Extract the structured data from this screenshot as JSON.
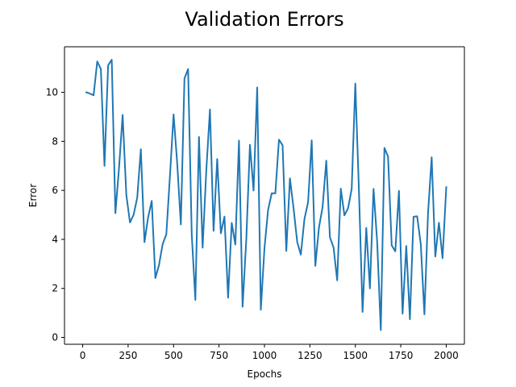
{
  "chart_data": {
    "type": "line",
    "title": "Validation Errors",
    "xlabel": "Epochs",
    "ylabel": "Error",
    "xlim": [
      -100,
      2100
    ],
    "ylim": [
      -0.28,
      11.86
    ],
    "xticks": [
      0,
      250,
      500,
      750,
      1000,
      1250,
      1500,
      1750,
      2000
    ],
    "xtick_labels": [
      "0",
      "250",
      "500",
      "750",
      "1000",
      "1250",
      "1500",
      "1750",
      "2000"
    ],
    "yticks": [
      0,
      2,
      4,
      6,
      8,
      10
    ],
    "ytick_labels": [
      "0",
      "2",
      "4",
      "6",
      "8",
      "10"
    ],
    "grid": false,
    "series": [
      {
        "color": "#1f77b4",
        "x": [
          20,
          40,
          60,
          80,
          100,
          120,
          140,
          160,
          180,
          200,
          220,
          240,
          260,
          280,
          300,
          320,
          340,
          360,
          380,
          400,
          420,
          440,
          460,
          480,
          500,
          520,
          540,
          560,
          580,
          600,
          620,
          640,
          660,
          680,
          700,
          720,
          740,
          760,
          780,
          800,
          820,
          840,
          860,
          880,
          900,
          920,
          940,
          960,
          980,
          1000,
          1020,
          1040,
          1060,
          1080,
          1100,
          1120,
          1140,
          1160,
          1180,
          1200,
          1220,
          1240,
          1260,
          1280,
          1300,
          1320,
          1340,
          1360,
          1380,
          1400,
          1420,
          1440,
          1460,
          1480,
          1500,
          1520,
          1540,
          1560,
          1580,
          1600,
          1620,
          1640,
          1660,
          1680,
          1700,
          1720,
          1740,
          1760,
          1780,
          1800,
          1820,
          1840,
          1860,
          1880,
          1900,
          1920,
          1940,
          1960,
          1980,
          2000
        ],
        "y": [
          10.0,
          9.95,
          9.88,
          11.26,
          10.95,
          7.0,
          11.1,
          11.33,
          5.07,
          6.9,
          9.08,
          5.81,
          4.69,
          5.0,
          5.7,
          7.68,
          3.89,
          4.9,
          5.57,
          2.42,
          2.95,
          3.8,
          4.21,
          6.6,
          9.1,
          7.1,
          4.61,
          10.57,
          10.95,
          4.21,
          1.53,
          8.18,
          3.66,
          6.83,
          9.3,
          4.35,
          7.28,
          4.25,
          4.93,
          1.62,
          4.67,
          3.79,
          8.03,
          1.25,
          4.02,
          7.86,
          5.99,
          10.2,
          1.13,
          3.63,
          5.2,
          5.88,
          5.88,
          8.07,
          7.84,
          3.53,
          6.49,
          5.27,
          3.9,
          3.38,
          4.83,
          5.52,
          8.04,
          2.92,
          4.48,
          5.32,
          7.21,
          4.09,
          3.67,
          2.33,
          6.07,
          4.98,
          5.27,
          6.06,
          10.36,
          5.99,
          1.04,
          4.47,
          2.0,
          6.06,
          3.9,
          0.3,
          7.73,
          7.38,
          3.76,
          3.51,
          5.98,
          0.97,
          3.73,
          0.74,
          4.92,
          4.94,
          3.8,
          0.94,
          5.07,
          7.35,
          3.3,
          4.68,
          3.23,
          6.13
        ]
      }
    ]
  }
}
